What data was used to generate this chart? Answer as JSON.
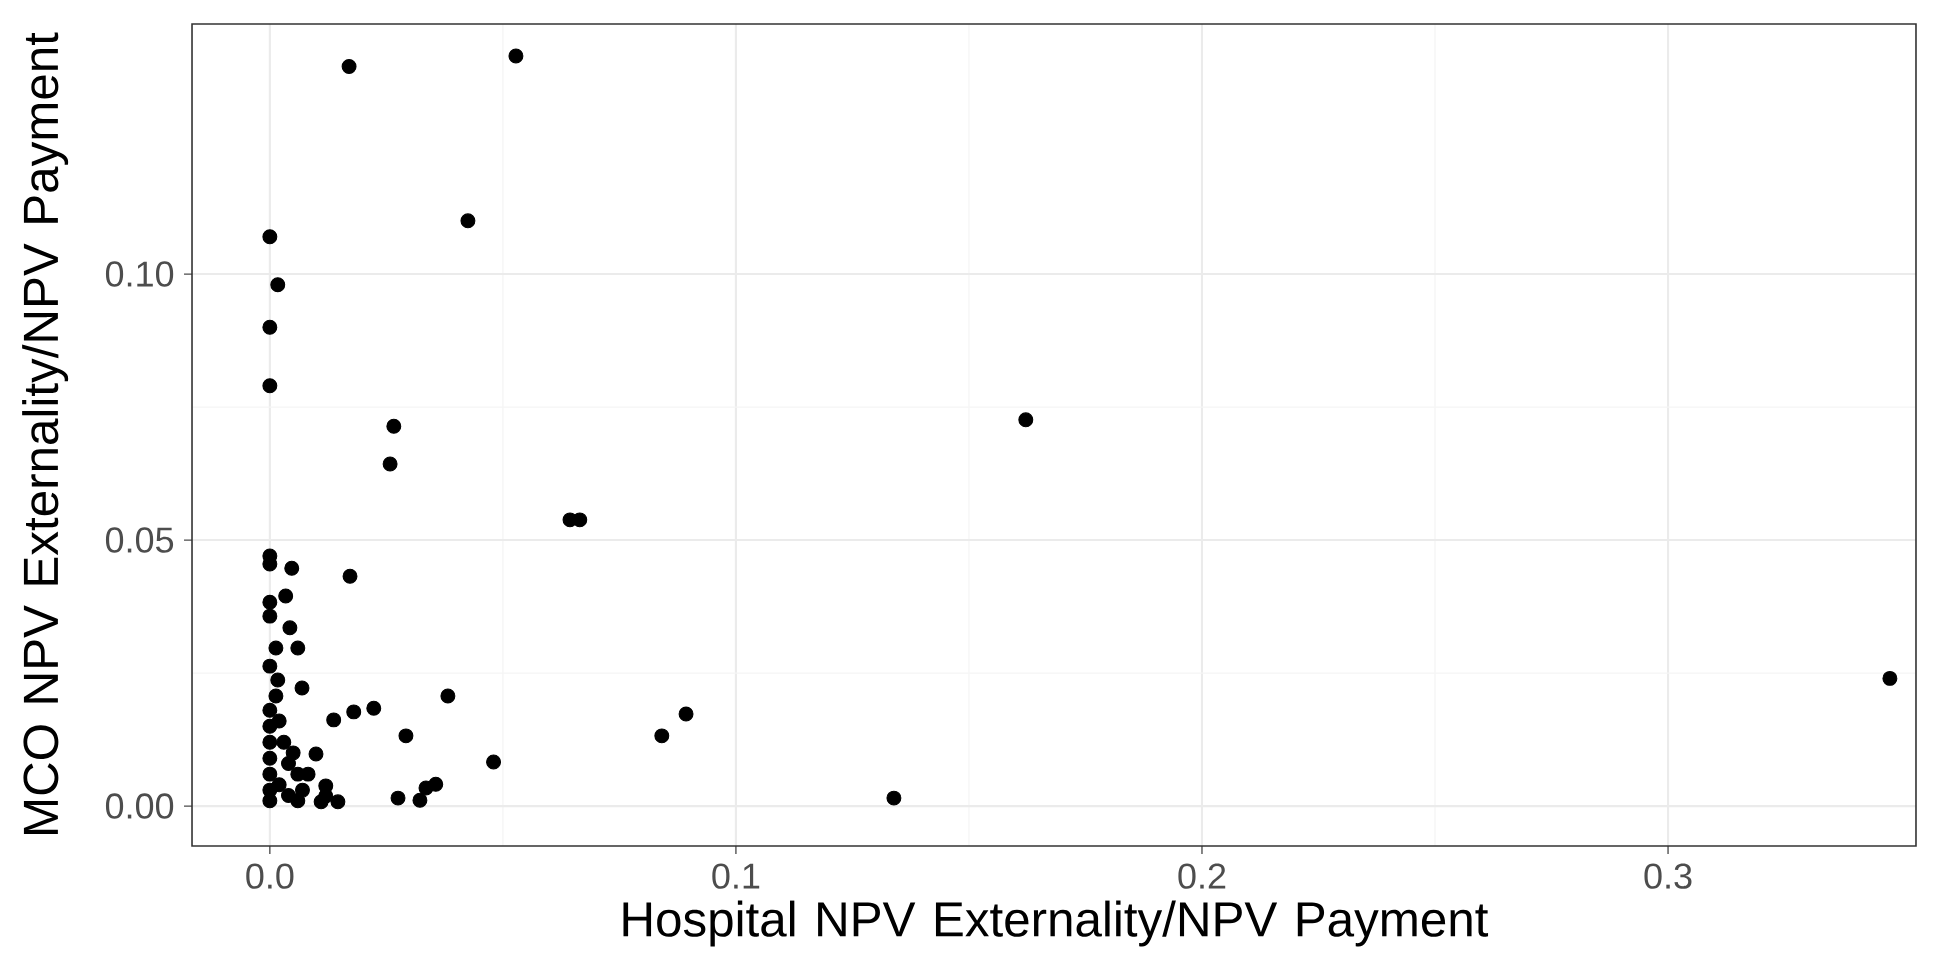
{
  "chart_data": {
    "type": "scatter",
    "xlabel": "Hospital NPV Externality/NPV Payment",
    "ylabel": "MCO NPV Externality/NPV Payment",
    "xlim": [
      -0.0167,
      0.3532
    ],
    "ylim": [
      -0.0075,
      0.147
    ],
    "xticks": [
      {
        "value": 0,
        "label": "0.0"
      },
      0.1,
      0.2,
      0.3
    ],
    "yticks": [
      {
        "value": 0,
        "label": "0.00"
      },
      {
        "value": 0.05,
        "label": "0.05"
      },
      {
        "value": 0.1,
        "label": "0.10"
      }
    ],
    "grid": true,
    "series": [
      {
        "color": "#000000",
        "x": [
          0.017,
          0.0528,
          0,
          0.0017,
          0.0425,
          0,
          0,
          0.0266,
          0.0258,
          0.0172,
          0.0644,
          0.0665,
          0.1622,
          0.3476,
          0.1339,
          0.0893,
          0.0841,
          0.048,
          0.0382,
          0.0292,
          0.0223,
          0.018,
          0.0137,
          0.0099,
          0.0275,
          0.0322,
          0.0335,
          0.0356,
          0.0146,
          0.012,
          0,
          0,
          0.0047,
          0.0034,
          0,
          0,
          0.0043,
          0.006,
          0.0013,
          0,
          0.0017,
          0.0069,
          0.0013,
          0,
          0,
          0,
          0,
          0,
          0,
          0,
          0.002,
          0.003,
          0.004,
          0.002,
          0.005,
          0.006,
          0.004,
          0.007,
          0.006,
          0.0082,
          0.012,
          0.011
        ],
        "values": [
          0.139,
          0.141,
          0.107,
          0.098,
          0.11,
          0.09,
          0.079,
          0.0714,
          0.0643,
          0.0432,
          0.0538,
          0.0538,
          0.0726,
          0.024,
          0.0015,
          0.0173,
          0.0132,
          0.0083,
          0.0207,
          0.0132,
          0.0184,
          0.0177,
          0.0162,
          0.0098,
          0.0015,
          0.0011,
          0.0034,
          0.0041,
          0.0008,
          0.0019,
          0.047,
          0.0455,
          0.0447,
          0.0395,
          0.0383,
          0.0357,
          0.0335,
          0.0297,
          0.0297,
          0.0263,
          0.0237,
          0.0222,
          0.0207,
          0.018,
          0.015,
          0.012,
          0.009,
          0.006,
          0.003,
          0.001,
          0.016,
          0.012,
          0.008,
          0.004,
          0.01,
          0.006,
          0.002,
          0.003,
          0.001,
          0.006,
          0.0038,
          0.0008
        ]
      }
    ]
  }
}
